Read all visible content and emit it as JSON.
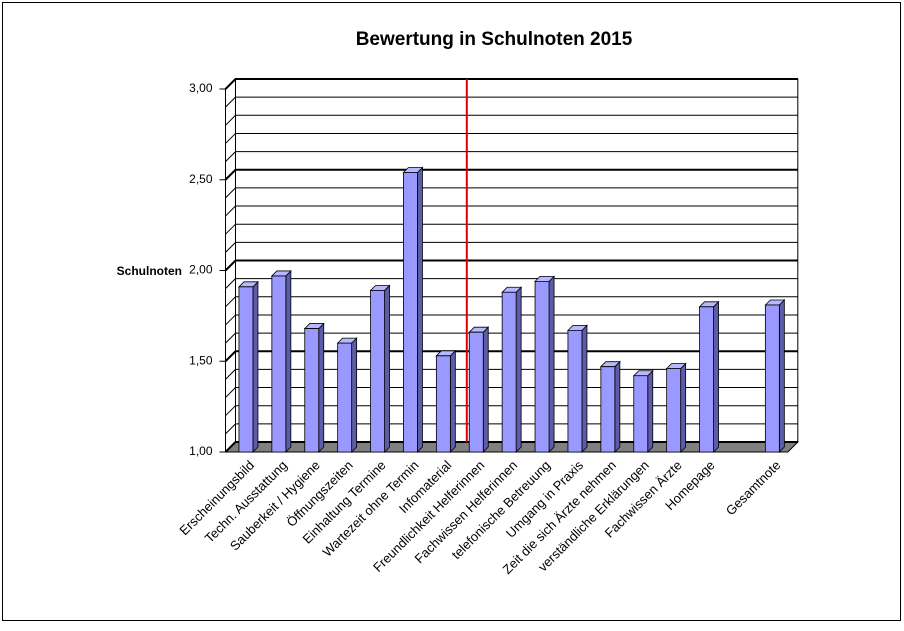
{
  "chart_data": {
    "type": "bar3d",
    "title": "Bewertung in Schulnoten 2015",
    "y_label": "Schulnoten",
    "categories": [
      "Erscheinungsbild",
      "Techn. Ausstattung",
      "Sauberkeit / Hygiene",
      "Öffnungszeiten",
      "Einhaltung Termine",
      "Wartezeit ohne Termin",
      "Infomaterial",
      "Freundlichkeit Helferinnen",
      "Fachwissen Helferinnen",
      "telefonische Betreuung",
      "Umgang in Praxis",
      "Zeit die sich Ärzte nehmen",
      "verständliche Erklärungen",
      "Fachwissen Ärzte",
      "Homepage",
      null,
      "Gesamtnote"
    ],
    "values": [
      1.91,
      1.97,
      1.68,
      1.6,
      1.89,
      2.54,
      1.53,
      1.66,
      1.88,
      1.94,
      1.67,
      1.47,
      1.42,
      1.46,
      1.8,
      null,
      1.81
    ],
    "color": "#9999ff",
    "ylim": [
      1,
      3
    ],
    "yticks": [
      {
        "value": 1,
        "label": "1,00"
      },
      {
        "value": 1.5,
        "label": "1,50"
      },
      {
        "value": 2,
        "label": "2,00"
      },
      {
        "value": 2.5,
        "label": "2,50"
      },
      {
        "value": 3,
        "label": "3,00"
      }
    ],
    "minor_yticks": [
      1.1,
      1.2,
      1.3,
      1.4,
      1.6,
      1.7,
      1.8,
      1.9,
      2.1,
      2.2,
      2.3,
      2.4,
      2.6,
      2.7,
      2.8,
      2.9
    ],
    "grid": true
  }
}
